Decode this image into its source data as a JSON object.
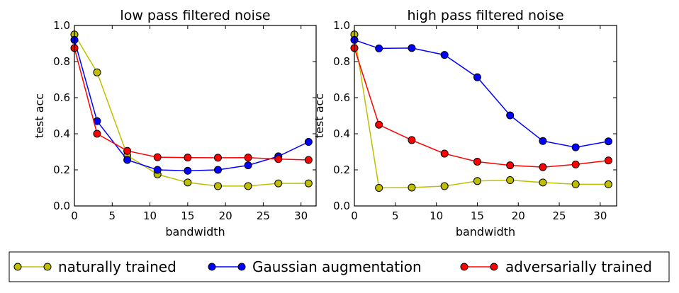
{
  "chart_data": [
    {
      "type": "line",
      "title": "low pass filtered noise",
      "xlabel": "bandwidth",
      "ylabel": "test acc",
      "xlim": [
        0,
        32
      ],
      "ylim": [
        0.0,
        1.0
      ],
      "xticks": [
        "0",
        "5",
        "10",
        "15",
        "20",
        "25",
        "30"
      ],
      "yticks": [
        "0.0",
        "0.2",
        "0.4",
        "0.6",
        "0.8",
        "1.0"
      ],
      "x": [
        0,
        3,
        7,
        11,
        15,
        19,
        23,
        27,
        31
      ],
      "series": [
        {
          "name": "naturally trained",
          "color": "#bfbf00",
          "values": [
            0.95,
            0.74,
            0.28,
            0.175,
            0.13,
            0.11,
            0.11,
            0.125,
            0.125
          ]
        },
        {
          "name": "Gaussian augmentation",
          "color": "#0000ff",
          "values": [
            0.92,
            0.47,
            0.255,
            0.2,
            0.195,
            0.2,
            0.225,
            0.275,
            0.355
          ]
        },
        {
          "name": "adversarially trained",
          "color": "#ff0000",
          "values": [
            0.875,
            0.4,
            0.305,
            0.27,
            0.268,
            0.267,
            0.268,
            0.26,
            0.255
          ]
        }
      ]
    },
    {
      "type": "line",
      "title": "high pass filtered noise",
      "xlabel": "bandwidth",
      "ylabel": "test acc",
      "xlim": [
        0,
        32
      ],
      "ylim": [
        0.0,
        1.0
      ],
      "xticks": [
        "0",
        "5",
        "10",
        "15",
        "20",
        "25",
        "30"
      ],
      "yticks": [
        "0.0",
        "0.2",
        "0.4",
        "0.6",
        "0.8",
        "1.0"
      ],
      "x": [
        0,
        3,
        7,
        11,
        15,
        19,
        23,
        27,
        31
      ],
      "series": [
        {
          "name": "naturally trained",
          "color": "#bfbf00",
          "values": [
            0.95,
            0.1,
            0.102,
            0.11,
            0.138,
            0.143,
            0.13,
            0.12,
            0.12
          ]
        },
        {
          "name": "Gaussian augmentation",
          "color": "#0000ff",
          "values": [
            0.92,
            0.873,
            0.875,
            0.837,
            0.713,
            0.502,
            0.36,
            0.325,
            0.358
          ]
        },
        {
          "name": "adversarially trained",
          "color": "#ff0000",
          "values": [
            0.875,
            0.45,
            0.365,
            0.29,
            0.245,
            0.225,
            0.215,
            0.23,
            0.252
          ]
        }
      ]
    }
  ],
  "legend": {
    "position": "bottom",
    "items": [
      {
        "label": "naturally trained",
        "color": "#bfbf00"
      },
      {
        "label": "Gaussian augmentation",
        "color": "#0000ff"
      },
      {
        "label": "adversarially trained",
        "color": "#ff0000"
      }
    ]
  }
}
